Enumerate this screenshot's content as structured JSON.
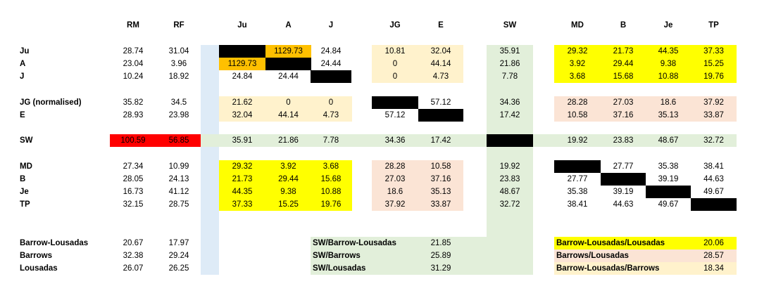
{
  "colors": {
    "black": "#000000",
    "orange": "#ffc000",
    "red": "#ff0000",
    "yellow": "#ffff00",
    "tan": "#fff2cc",
    "pink": "#fbe4d5",
    "green": "#e2efda",
    "blue": "#deebf7"
  },
  "headers": [
    "RM",
    "RF",
    "Ju",
    "A",
    "J",
    "JG",
    "E",
    "SW",
    "MD",
    "B",
    "Je",
    "TP"
  ],
  "row_labels": [
    "Ju",
    "A",
    "J",
    "JG (normalised)",
    "E",
    "SW",
    "MD",
    "B",
    "Je",
    "TP",
    "Barrow-Lousadas",
    "Barrows",
    "Lousadas"
  ],
  "left": {
    "Ju": [
      "28.74",
      "31.04"
    ],
    "A": [
      "23.04",
      "3.96"
    ],
    "J": [
      "10.24",
      "18.92"
    ],
    "JG": [
      "35.82",
      "34.5"
    ],
    "E": [
      "28.93",
      "23.98"
    ],
    "SW": [
      "100.59",
      "56.85"
    ],
    "MD": [
      "27.34",
      "10.99"
    ],
    "B": [
      "28.05",
      "24.13"
    ],
    "Je": [
      "16.73",
      "41.12"
    ],
    "TP": [
      "32.15",
      "28.75"
    ],
    "BL": [
      "20.67",
      "17.97"
    ],
    "Bw": [
      "32.38",
      "29.24"
    ],
    "Lo": [
      "26.07",
      "26.25"
    ]
  },
  "g1": {
    "Ju": [
      "",
      "1129.73",
      "24.84"
    ],
    "A": [
      "1129.73",
      "",
      "24.44"
    ],
    "J": [
      "24.84",
      "24.44",
      ""
    ],
    "JG": [
      "21.62",
      "0",
      "0"
    ],
    "E": [
      "32.04",
      "44.14",
      "4.73"
    ],
    "SW": [
      "35.91",
      "21.86",
      "7.78"
    ],
    "MD": [
      "29.32",
      "3.92",
      "3.68"
    ],
    "B": [
      "21.73",
      "29.44",
      "15.68"
    ],
    "Je": [
      "44.35",
      "9.38",
      "10.88"
    ],
    "TP": [
      "37.33",
      "15.25",
      "19.76"
    ]
  },
  "g2": {
    "Ju": [
      "10.81",
      "32.04"
    ],
    "A": [
      "0",
      "44.14"
    ],
    "J": [
      "0",
      "4.73"
    ],
    "JG": [
      "",
      "57.12"
    ],
    "E": [
      "57.12",
      ""
    ],
    "SW": [
      "34.36",
      "17.42"
    ],
    "MD": [
      "28.28",
      "10.58"
    ],
    "B": [
      "27.03",
      "37.16"
    ],
    "Je": [
      "18.6",
      "35.13"
    ],
    "TP": [
      "37.92",
      "33.87"
    ]
  },
  "g3": {
    "Ju": "35.91",
    "A": "21.86",
    "J": "7.78",
    "JG": "34.36",
    "E": "17.42",
    "SW": "",
    "MD": "19.92",
    "B": "23.83",
    "Je": "48.67",
    "TP": "32.72"
  },
  "g4": {
    "Ju": [
      "29.32",
      "21.73",
      "44.35",
      "37.33"
    ],
    "A": [
      "3.92",
      "29.44",
      "9.38",
      "15.25"
    ],
    "J": [
      "3.68",
      "15.68",
      "10.88",
      "19.76"
    ],
    "JG": [
      "28.28",
      "27.03",
      "18.6",
      "37.92"
    ],
    "E": [
      "10.58",
      "37.16",
      "35.13",
      "33.87"
    ],
    "SW": [
      "19.92",
      "23.83",
      "48.67",
      "32.72"
    ],
    "MD": [
      "",
      "27.77",
      "35.38",
      "38.41"
    ],
    "B": [
      "27.77",
      "",
      "39.19",
      "44.63"
    ],
    "Je": [
      "35.38",
      "39.19",
      "",
      "49.67"
    ],
    "TP": [
      "38.41",
      "44.63",
      "49.67",
      ""
    ]
  },
  "mid_summary": [
    {
      "label": "SW/Barrow-Lousadas",
      "value": "21.85"
    },
    {
      "label": "SW/Barrows",
      "value": "25.89"
    },
    {
      "label": "SW/Lousadas",
      "value": "31.29"
    }
  ],
  "right_summary": [
    {
      "label": "Barrow-Lousadas/Lousadas",
      "value": "20.06"
    },
    {
      "label": "Barrows/Lousadas",
      "value": "28.57"
    },
    {
      "label": "Barrow-Lousadas/Barrows",
      "value": "18.34"
    }
  ]
}
